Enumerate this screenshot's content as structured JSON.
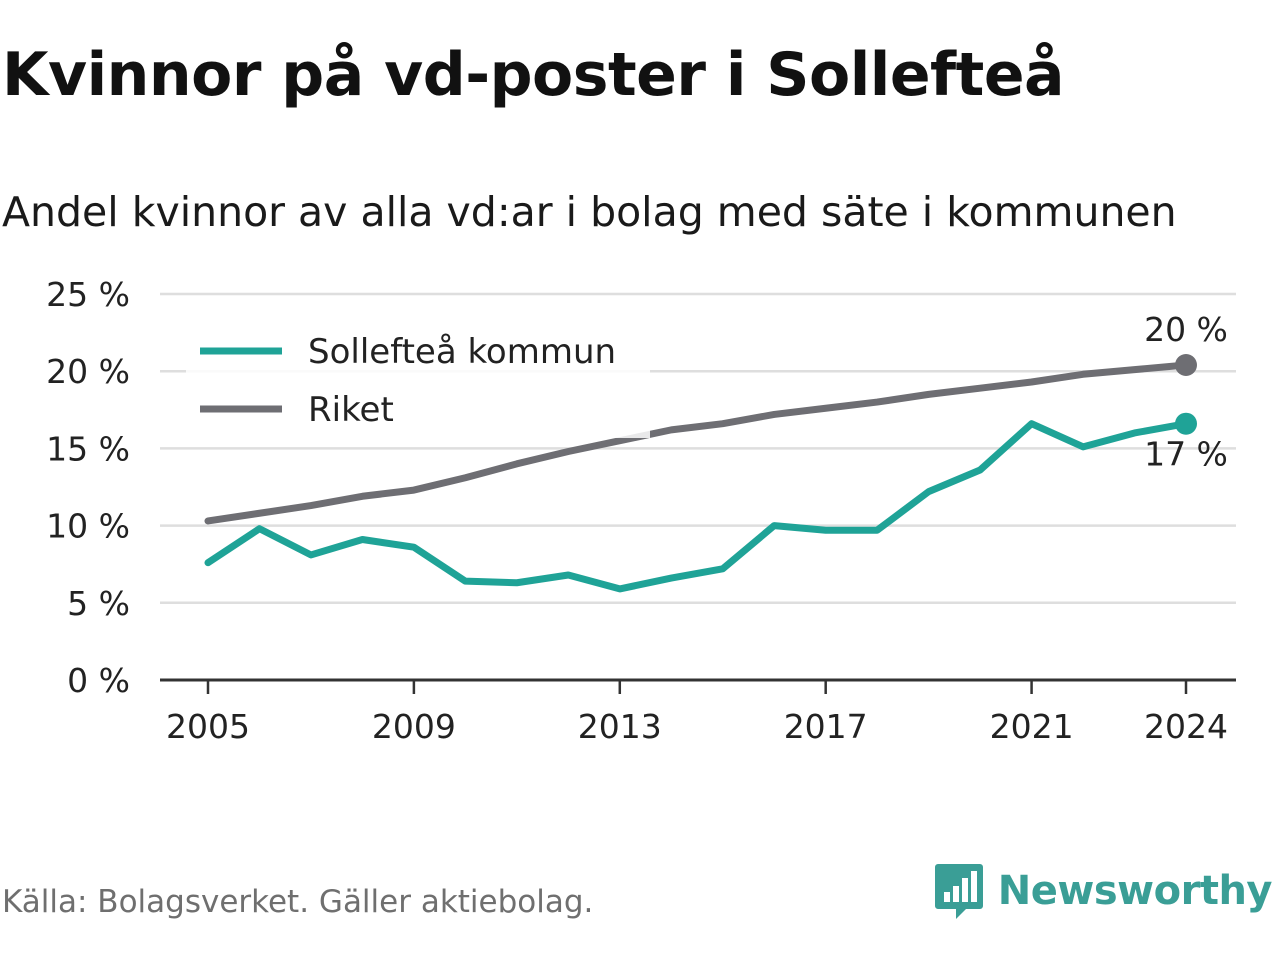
{
  "title": "Kvinnor på vd-poster i Sollefteå",
  "subtitle": "Andel kvinnor av alla vd:ar i bolag med säte i kommunen",
  "source": "Källa: Bolagsverket. Gäller aktiebolag.",
  "brand": {
    "name": "Newsworthy",
    "color": "#3a9e96",
    "icon": "bar-chart-speech-bubble-icon"
  },
  "chart_data": {
    "type": "line",
    "x": [
      2005,
      2006,
      2007,
      2008,
      2009,
      2010,
      2011,
      2012,
      2013,
      2014,
      2015,
      2016,
      2017,
      2018,
      2019,
      2020,
      2021,
      2022,
      2023,
      2024
    ],
    "xticks": [
      2005,
      2009,
      2013,
      2017,
      2021,
      2024
    ],
    "xtick_labels": [
      "2005",
      "2009",
      "2013",
      "2017",
      "2021",
      "2024"
    ],
    "yticks": [
      0,
      5,
      10,
      15,
      20,
      25
    ],
    "ytick_labels": [
      "0 %",
      "5 %",
      "10 %",
      "15 %",
      "20 %",
      "25 %"
    ],
    "ylim": [
      0,
      25
    ],
    "grid": true,
    "legend_position": "top-left",
    "series": [
      {
        "name": "Sollefteå kommun",
        "color": "#1fa397",
        "values": [
          7.6,
          9.8,
          8.1,
          9.1,
          8.6,
          6.4,
          6.3,
          6.8,
          5.9,
          6.6,
          7.2,
          10.0,
          9.7,
          9.7,
          12.2,
          13.6,
          16.6,
          15.1,
          16.0,
          16.6
        ],
        "end_label": "17 %"
      },
      {
        "name": "Riket",
        "color": "#6e6e73",
        "values": [
          10.3,
          10.8,
          11.3,
          11.9,
          12.3,
          13.1,
          14.0,
          14.8,
          15.5,
          16.2,
          16.6,
          17.2,
          17.6,
          18.0,
          18.5,
          18.9,
          19.3,
          19.8,
          20.1,
          20.4
        ],
        "end_label": "20 %"
      }
    ]
  }
}
